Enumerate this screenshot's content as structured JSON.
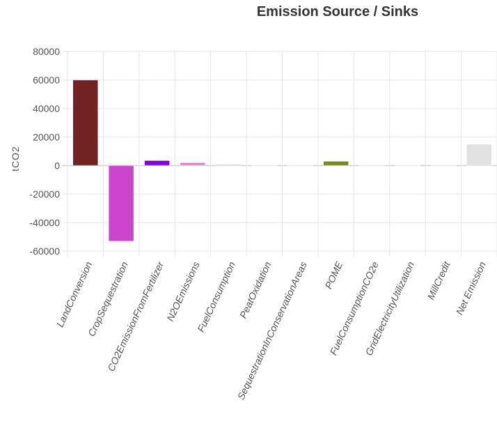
{
  "chart_data": {
    "type": "bar",
    "title": "Emission Source / Sinks",
    "ylabel": "tCO2",
    "xlabel": "",
    "ylim": [
      -60000,
      80000
    ],
    "yticks": [
      80000,
      60000,
      40000,
      20000,
      0,
      -20000,
      -40000,
      -60000
    ],
    "grid": true,
    "categories": [
      "LandConversion",
      "CropSequestration",
      "CO2EmissionFromFertilizer",
      "N2OEmissions",
      "FuelConsumption",
      "PeatOxidation",
      "SequestrationInConservationAreas",
      "POME",
      "FuelConsumptionCO2e",
      "GridElectricityUtilization",
      "MillCredit",
      "Net Emission"
    ],
    "values": [
      60000,
      -53000,
      3500,
      2000,
      800,
      0,
      0,
      3000,
      300,
      200,
      0,
      15000
    ],
    "colors": [
      "#722222",
      "#cc44cc",
      "#8800dd",
      "#dd88cc",
      "#ccccee",
      "#dddddd",
      "#dddddd",
      "#7a8a22",
      "#dddddd",
      "#ddeeee",
      "#dddddd",
      "#e2e2e2"
    ]
  }
}
